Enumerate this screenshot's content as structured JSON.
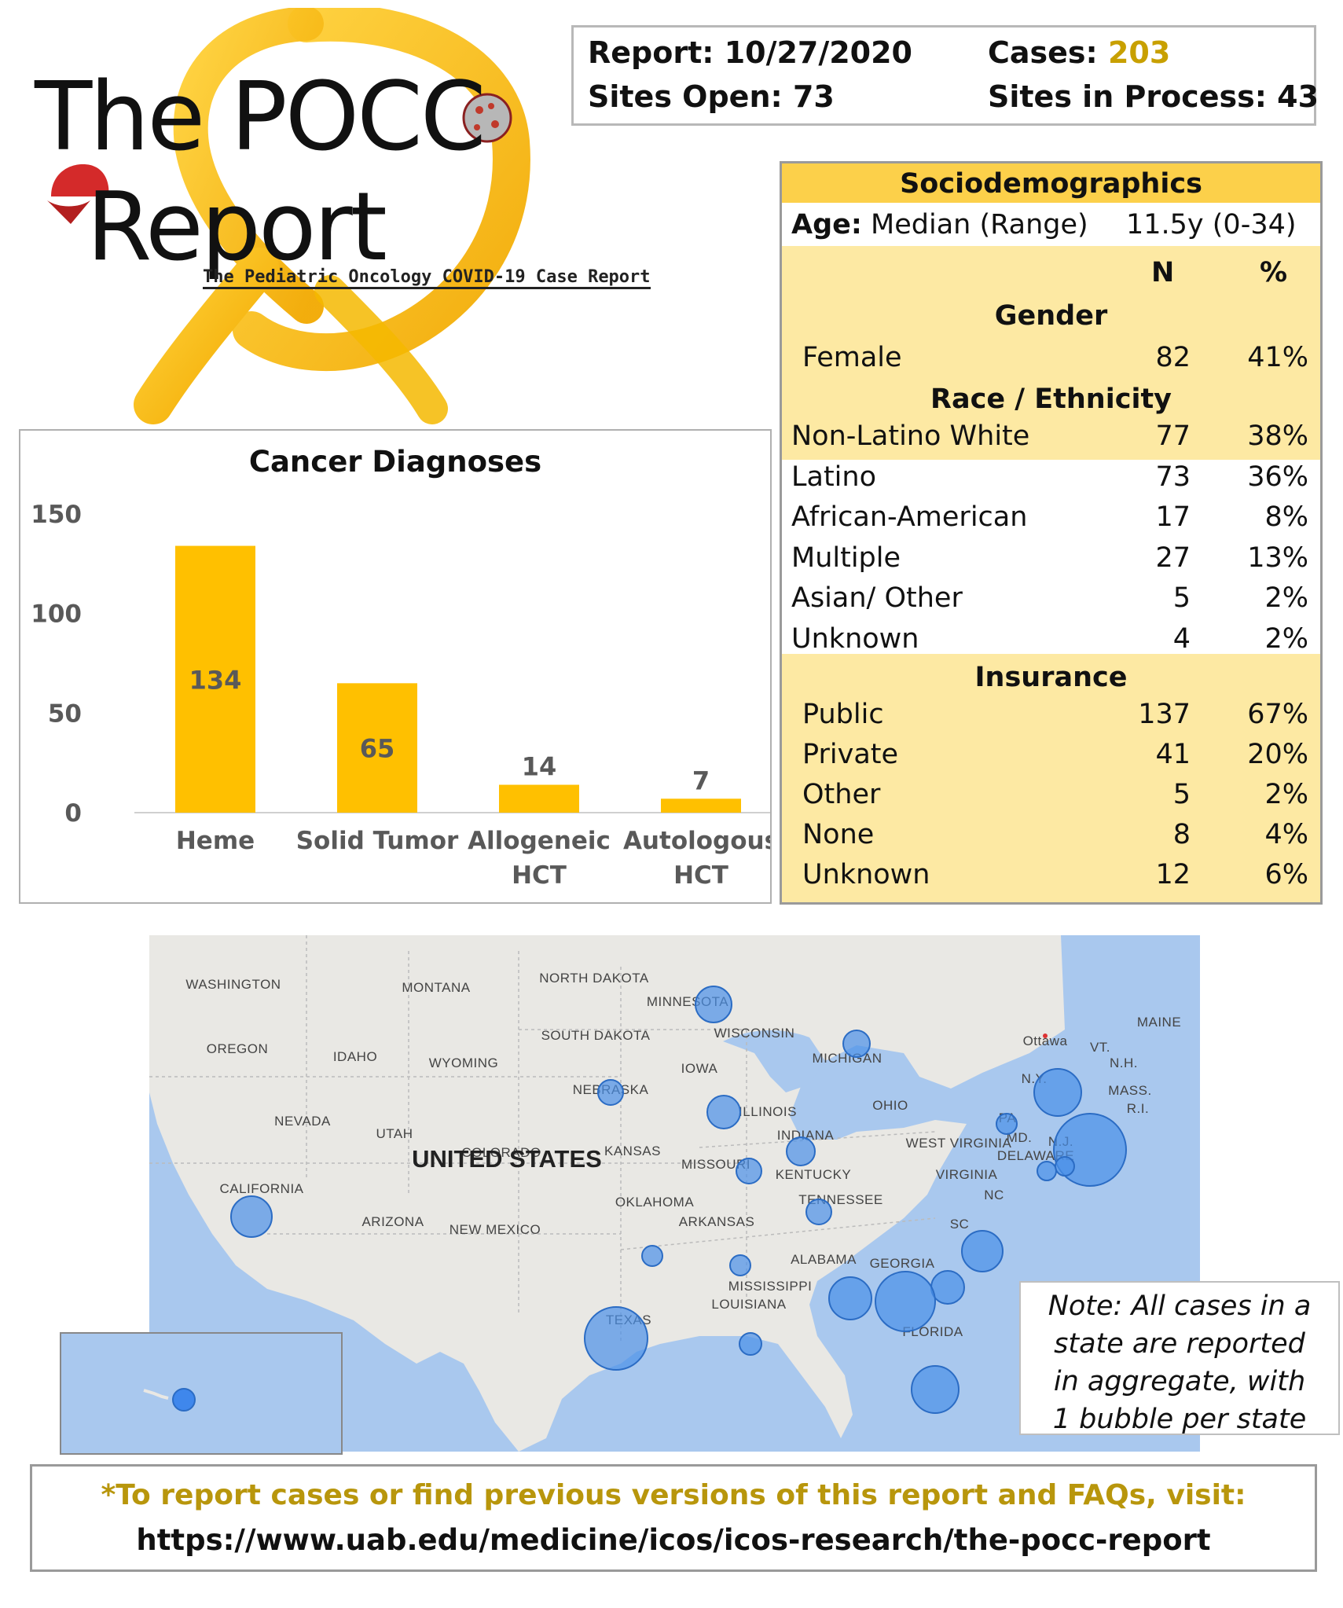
{
  "logo": {
    "line1": "The POCC",
    "line2": "Report",
    "subtitle": "The Pediatric Oncology COVID-19 Case Report"
  },
  "report": {
    "report_label": "Report:",
    "report_date": "10/27/2020",
    "cases_label": "Cases:",
    "cases_value": "203",
    "sites_open_label": "Sites Open:",
    "sites_open_value": "73",
    "sites_process_label": "Sites in Process:",
    "sites_process_value": "43"
  },
  "sociodemographics": {
    "title": "Sociodemographics",
    "age_label": "Age:",
    "age_stat": "Median (Range)",
    "age_value": "11.5y (0-34)",
    "col_n": "N",
    "col_pct": "%",
    "gender_title": "Gender",
    "gender": [
      {
        "label": "Female",
        "n": "82",
        "pct": "41%"
      }
    ],
    "race_title": "Race / Ethnicity",
    "race": [
      {
        "label": "Non-Latino White",
        "n": "77",
        "pct": "38%"
      },
      {
        "label": "Latino",
        "n": "73",
        "pct": "36%"
      },
      {
        "label": "African-American",
        "n": "17",
        "pct": "8%"
      },
      {
        "label": "Multiple",
        "n": "27",
        "pct": "13%"
      },
      {
        "label": "Asian/ Other",
        "n": "5",
        "pct": "2%"
      },
      {
        "label": "Unknown",
        "n": "4",
        "pct": "2%"
      }
    ],
    "insurance_title": "Insurance",
    "insurance": [
      {
        "label": "Public",
        "n": "137",
        "pct": "67%"
      },
      {
        "label": "Private",
        "n": "41",
        "pct": "20%"
      },
      {
        "label": "Other",
        "n": "5",
        "pct": "2%"
      },
      {
        "label": "None",
        "n": "8",
        "pct": "4%"
      },
      {
        "label": "Unknown",
        "n": "12",
        "pct": "6%"
      }
    ]
  },
  "chart_data": {
    "type": "bar",
    "title": "Cancer Diagnoses",
    "categories": [
      [
        "Heme"
      ],
      [
        "Solid Tumor"
      ],
      [
        "Allogeneic",
        "HCT"
      ],
      [
        "Autologous",
        "HCT"
      ]
    ],
    "values": [
      134,
      65,
      14,
      7
    ],
    "ylim": [
      0,
      150
    ],
    "yticks": [
      0,
      50,
      100,
      150
    ],
    "bar_color": "#ffc000",
    "grid": false
  },
  "map": {
    "country_label": "UNITED STATES",
    "state_labels": [
      "WASHINGTON",
      "MONTANA",
      "NORTH DAKOTA",
      "MINNESOTA",
      "OREGON",
      "IDAHO",
      "WYOMING",
      "SOUTH DAKOTA",
      "WISCONSIN",
      "MICHIGAN",
      "NEVADA",
      "UTAH",
      "NEBRASKA",
      "IOWA",
      "COLORADO",
      "KANSAS",
      "ILLINOIS",
      "INDIANA",
      "OHIO",
      "MISSOURI",
      "CALIFORNIA",
      "ARIZONA",
      "NEW MEXICO",
      "OKLAHOMA",
      "ARKANSAS",
      "KENTUCKY",
      "WEST VIRGINIA",
      "VIRGINIA",
      "TENNESSEE",
      "TEXAS",
      "MISSISSIPPI",
      "ALABAMA",
      "GEORGIA",
      "LOUISIANA",
      "FLORIDA",
      "Ottawa",
      "VT.",
      "MAINE",
      "N.H.",
      "MASS.",
      "R.I.",
      "N.Y.",
      "PA",
      "N.J.",
      "MD.",
      "DELAWARE",
      "NC",
      "SC"
    ],
    "bubble_color": "#4a90e8",
    "note": [
      "Note: All cases in a",
      "state are reported",
      "in aggregate, with",
      "1 bubble per state"
    ]
  },
  "footer": {
    "line1": "*To report cases or find previous versions of this report and FAQs, visit:",
    "line2": "https://www.uab.edu/medicine/icos/icos-research/the-pocc-report",
    "line1_color": "#b8960c"
  }
}
